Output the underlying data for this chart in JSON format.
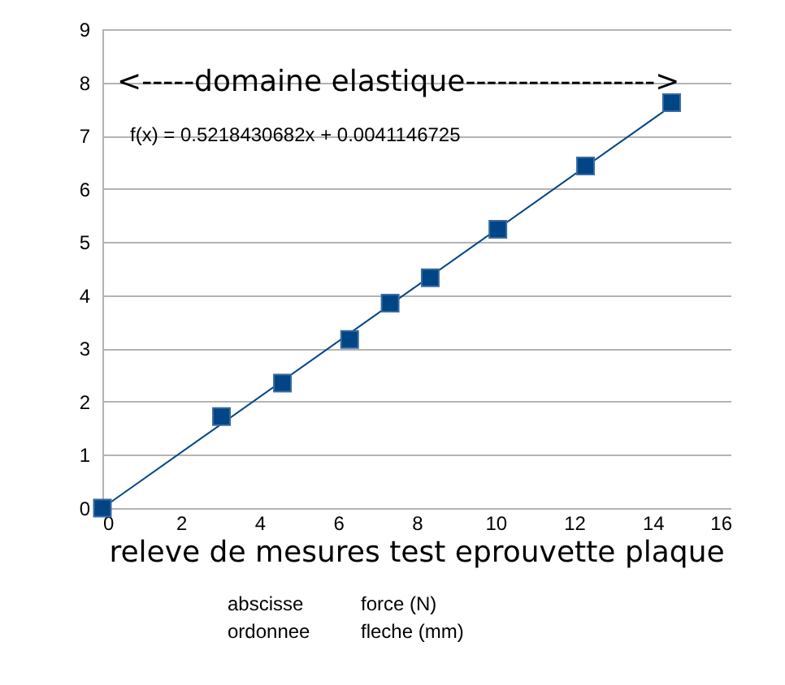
{
  "chart_data": {
    "type": "scatter",
    "title": "releve de mesures test eprouvette plaque",
    "annotations": [
      "<-----domaine elastique------------------>",
      "f(x) = 0.5218430682x + 0.0041146725",
      "abscisse",
      "force (N)",
      "ordonnee",
      "fleche (mm)"
    ],
    "x": [
      0,
      3.03,
      4.58,
      6.29,
      7.32,
      8.34,
      10.06,
      12.29,
      14.48
    ],
    "series": [
      {
        "color": "#004586",
        "marker": "square",
        "values": [
          0,
          1.72,
          2.35,
          3.17,
          3.85,
          4.33,
          5.24,
          6.43,
          7.62
        ]
      },
      {
        "type": "line",
        "color": "#004586",
        "marker": "none",
        "x": [
          0,
          14.48
        ],
        "values": [
          0,
          7.56
        ]
      }
    ],
    "xlim": [
      0,
      16
    ],
    "xticks": [
      0,
      2,
      4,
      6,
      8,
      10,
      12,
      14,
      16
    ],
    "ylim": [
      0,
      9
    ],
    "yticks": [
      0,
      1,
      2,
      3,
      4,
      5,
      6,
      7,
      8,
      9
    ],
    "grid": "y"
  }
}
